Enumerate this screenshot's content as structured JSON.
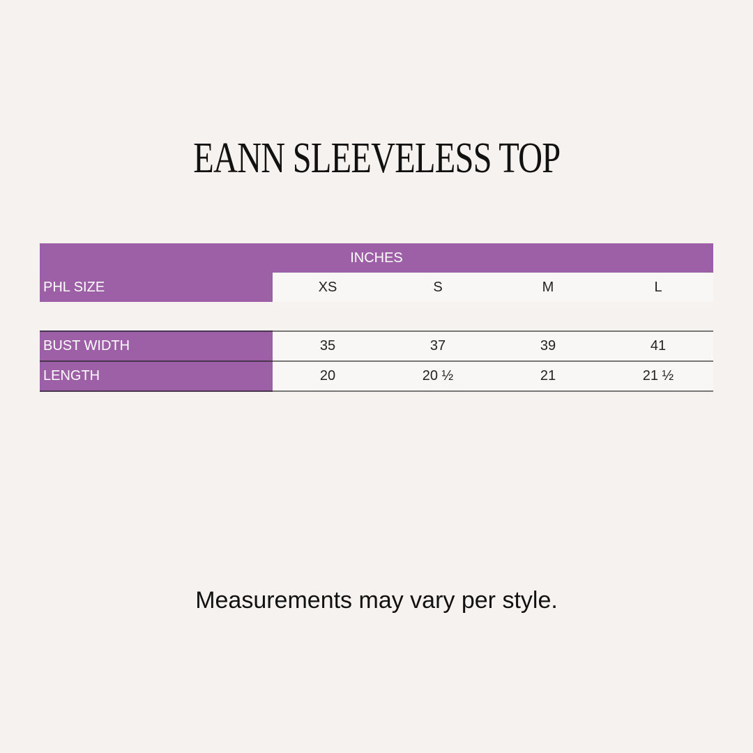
{
  "title": "EANN SLEEVELESS TOP",
  "table": {
    "unit_header": "INCHES",
    "size_label": "PHL SIZE",
    "sizes": [
      "XS",
      "S",
      "M",
      "L"
    ],
    "rows": [
      {
        "label": "BUST WIDTH",
        "values": [
          "35",
          "37",
          "39",
          "41"
        ]
      },
      {
        "label": "LENGTH",
        "values": [
          "20",
          "20 ½",
          "21",
          "21 ½"
        ]
      }
    ]
  },
  "footer": "Measurements may vary per style.",
  "colors": {
    "accent": "#9d5fa6",
    "background": "#f6f2ef"
  }
}
